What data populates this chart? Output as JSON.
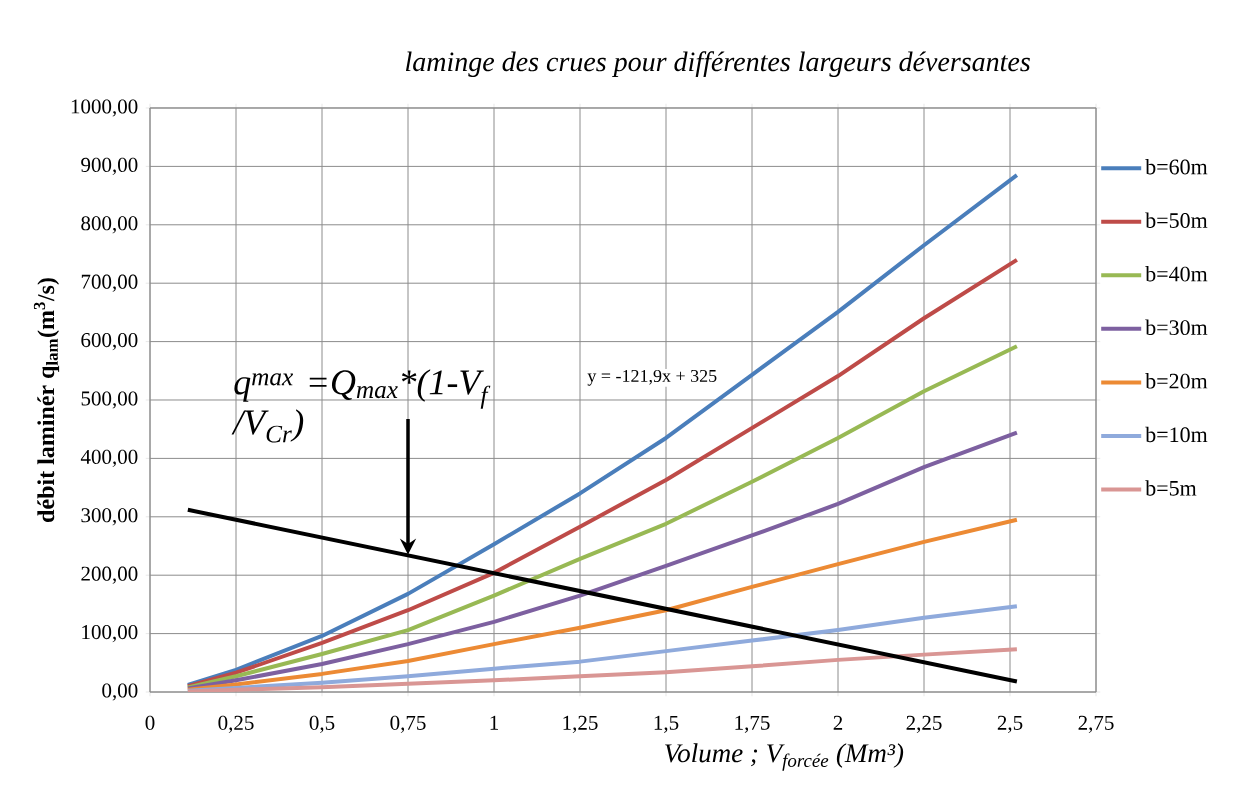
{
  "chart_data": {
    "type": "line",
    "title": "laminge des crues pour différentes largeurs déversantes",
    "xlabel": "Volume ;  V$_{forcée}$  (Mm³)",
    "ylabel": "débit laminér q$_{lam}$(m$^{3}$/s)",
    "x": [
      0.11,
      0.25,
      0.5,
      0.75,
      1,
      1.25,
      1.5,
      1.75,
      2,
      2.25,
      2.52
    ],
    "series": [
      {
        "name": "b=60m",
        "color": "#4a7ebb",
        "values": [
          12,
          38,
          96,
          168,
          253,
          340,
          435,
          543,
          651,
          765,
          885
        ]
      },
      {
        "name": "b=50m",
        "color": "#be4b48",
        "values": [
          10,
          33,
          84,
          140,
          204,
          283,
          363,
          452,
          541,
          640,
          740
        ]
      },
      {
        "name": "b=40m",
        "color": "#98b954",
        "values": [
          8,
          27,
          65,
          106,
          165,
          228,
          288,
          360,
          435,
          515,
          592
        ]
      },
      {
        "name": "b=30m",
        "color": "#7d60a0",
        "values": [
          6,
          20,
          48,
          82,
          120,
          165,
          216,
          268,
          322,
          385,
          444
        ]
      },
      {
        "name": "b=20m",
        "color": "#ec8a34",
        "values": [
          4,
          13,
          31,
          53,
          82,
          110,
          140,
          180,
          219,
          257,
          295
        ]
      },
      {
        "name": "b=10m",
        "color": "#8faadc",
        "values": [
          2,
          7,
          16,
          27,
          40,
          52,
          70,
          88,
          106,
          127,
          147
        ]
      },
      {
        "name": "b=5m",
        "color": "#d99694",
        "values": [
          1,
          4,
          8,
          14,
          20,
          27,
          34,
          44,
          55,
          64,
          73
        ]
      },
      {
        "type": "line",
        "color": "#000000",
        "x": [
          0.11,
          2.52
        ],
        "values": [
          312,
          18
        ]
      }
    ],
    "annotations": [
      "y = -121,9x + 325",
      "q$^{max}$ =Q$_{max}$*(1-V$_{f}$ /V$_{Cr}$)"
    ],
    "xlim": [
      0,
      2.75
    ],
    "xticks": [
      0,
      {
        "value": 0.25,
        "label": "0,25"
      },
      {
        "value": 0.5,
        "label": "0,5"
      },
      {
        "value": 0.75,
        "label": "0,75"
      },
      1,
      {
        "value": 1.25,
        "label": "1,25"
      },
      {
        "value": 1.5,
        "label": "1,5"
      },
      {
        "value": 1.75,
        "label": "1,75"
      },
      2,
      {
        "value": 2.25,
        "label": "2,25"
      },
      {
        "value": 2.5,
        "label": "2,5"
      },
      {
        "value": 2.75,
        "label": "2,75"
      }
    ],
    "ylim": [
      0,
      1000
    ],
    "yticks": [
      {
        "value": 0,
        "label": "0,00"
      },
      {
        "value": 100,
        "label": "100,00"
      },
      {
        "value": 200,
        "label": "200,00"
      },
      {
        "value": 300,
        "label": "300,00"
      },
      {
        "value": 400,
        "label": "400,00"
      },
      {
        "value": 500,
        "label": "500,00"
      },
      {
        "value": 600,
        "label": "600,00"
      },
      {
        "value": 700,
        "label": "700,00"
      },
      {
        "value": 800,
        "label": "800,00"
      },
      {
        "value": 900,
        "label": "900,00"
      },
      {
        "value": 1000,
        "label": "1000,00"
      }
    ],
    "grid": true,
    "legend": "right"
  }
}
